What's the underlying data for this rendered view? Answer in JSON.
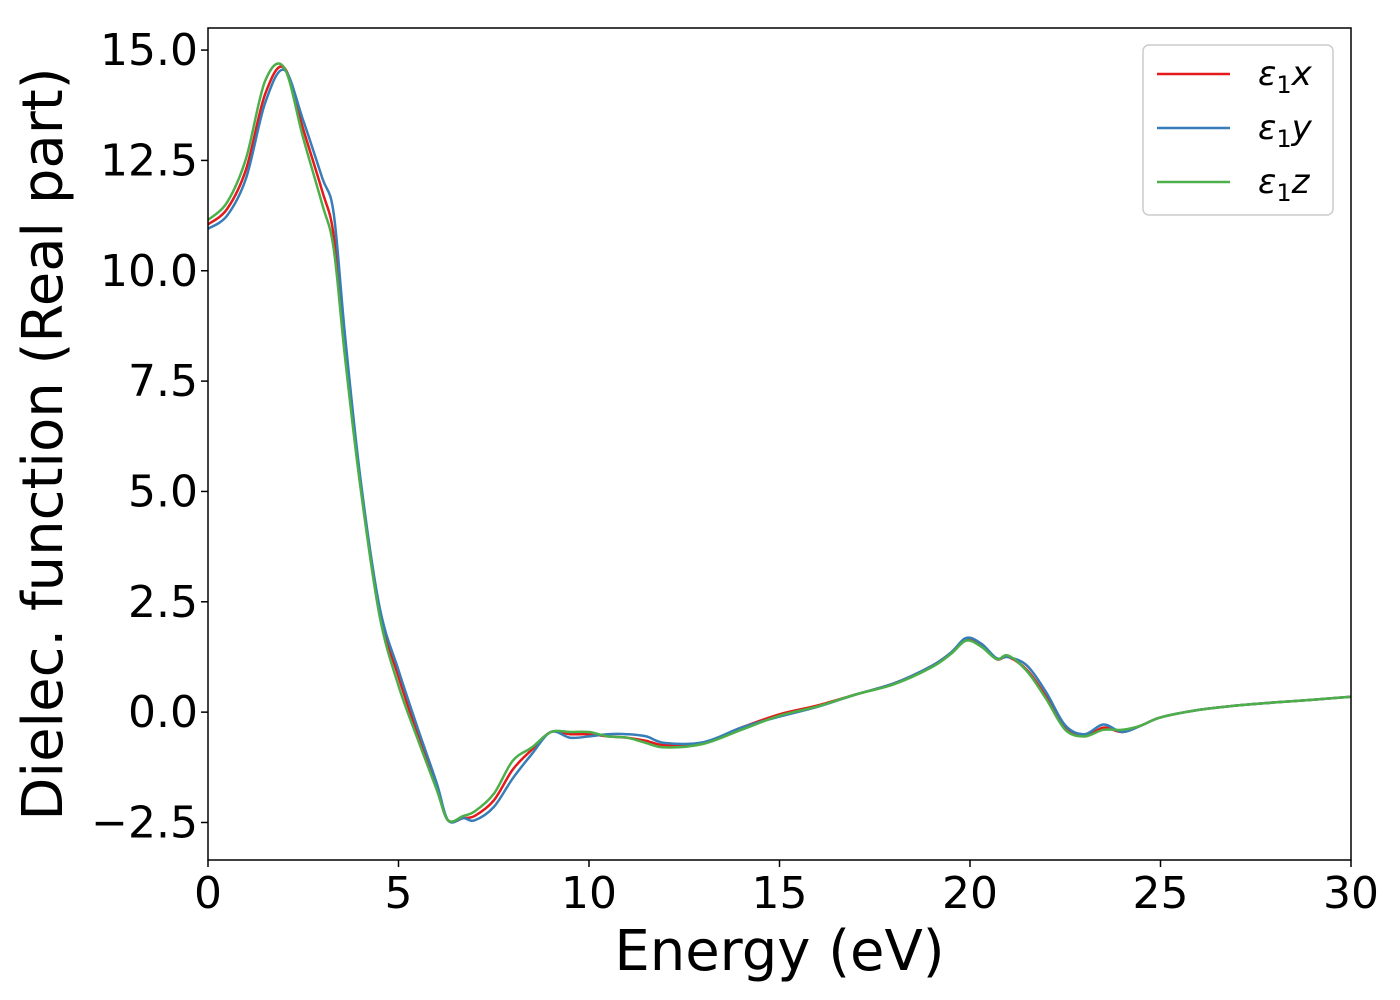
{
  "chart_data": {
    "type": "line",
    "title": "",
    "xlabel": "Energy (eV)",
    "ylabel": "Dielec. function (Real part)",
    "xlim": [
      0,
      30
    ],
    "ylim": [
      -3.35,
      15.5
    ],
    "xticks": [
      0,
      5,
      10,
      15,
      20,
      25,
      30
    ],
    "xtick_labels": [
      "0",
      "5",
      "10",
      "15",
      "20",
      "25",
      "30"
    ],
    "yticks": [
      -2.5,
      0.0,
      2.5,
      5.0,
      7.5,
      10.0,
      12.5,
      15.0
    ],
    "ytick_labels": [
      "−2.5",
      "0.0",
      "2.5",
      "5.0",
      "7.5",
      "10.0",
      "12.5",
      "15.0"
    ],
    "grid": false,
    "legend_position": "top-right",
    "series": [
      {
        "name": "ε₁x",
        "legend_main": "ε",
        "legend_sub": "1",
        "legend_var": "x",
        "color": "#e41a1c",
        "x": [
          0,
          0.5,
          1.0,
          1.5,
          2.0,
          2.5,
          3.0,
          3.3,
          3.6,
          4.0,
          4.5,
          5.0,
          5.5,
          6.0,
          6.3,
          6.7,
          7.0,
          7.5,
          8.0,
          8.5,
          9.0,
          9.5,
          10.0,
          10.5,
          11.0,
          11.5,
          12.0,
          13.0,
          14.0,
          15.0,
          16.0,
          17.0,
          18.0,
          19.0,
          19.5,
          19.9,
          20.3,
          20.7,
          21.0,
          21.5,
          22.0,
          22.5,
          23.0,
          23.5,
          24.0,
          24.5,
          25.0,
          26.0,
          27.0,
          28.0,
          29.0,
          30.0
        ],
        "y": [
          11.05,
          11.4,
          12.3,
          14.0,
          14.6,
          13.2,
          11.8,
          10.8,
          8.2,
          5.2,
          2.3,
          0.8,
          -0.5,
          -1.7,
          -2.45,
          -2.4,
          -2.35,
          -2.0,
          -1.3,
          -0.85,
          -0.45,
          -0.5,
          -0.5,
          -0.55,
          -0.58,
          -0.65,
          -0.75,
          -0.7,
          -0.35,
          -0.05,
          0.15,
          0.4,
          0.65,
          1.05,
          1.35,
          1.65,
          1.5,
          1.2,
          1.25,
          0.95,
          0.35,
          -0.35,
          -0.55,
          -0.35,
          -0.45,
          -0.3,
          -0.12,
          0.05,
          0.15,
          0.22,
          0.28,
          0.35
        ]
      },
      {
        "name": "ε₁y",
        "legend_main": "ε",
        "legend_sub": "1",
        "legend_var": "y",
        "color": "#377eb8",
        "x": [
          0,
          0.5,
          1.0,
          1.5,
          2.0,
          2.5,
          3.0,
          3.3,
          3.6,
          4.0,
          4.5,
          5.0,
          5.5,
          6.0,
          6.3,
          6.7,
          7.0,
          7.5,
          8.0,
          8.5,
          9.0,
          9.5,
          10.0,
          10.5,
          11.0,
          11.5,
          12.0,
          13.0,
          14.0,
          15.0,
          16.0,
          17.0,
          18.0,
          19.0,
          19.5,
          19.9,
          20.3,
          20.7,
          21.0,
          21.5,
          22.0,
          22.5,
          23.0,
          23.5,
          24.0,
          24.5,
          25.0,
          26.0,
          27.0,
          28.0,
          29.0,
          30.0
        ],
        "y": [
          10.95,
          11.25,
          12.1,
          13.8,
          14.55,
          13.4,
          12.1,
          11.3,
          8.5,
          5.3,
          2.4,
          0.95,
          -0.35,
          -1.6,
          -2.45,
          -2.4,
          -2.45,
          -2.15,
          -1.5,
          -0.95,
          -0.45,
          -0.58,
          -0.55,
          -0.5,
          -0.5,
          -0.55,
          -0.7,
          -0.68,
          -0.35,
          -0.1,
          0.12,
          0.4,
          0.65,
          1.05,
          1.35,
          1.68,
          1.55,
          1.22,
          1.25,
          1.05,
          0.45,
          -0.3,
          -0.5,
          -0.28,
          -0.45,
          -0.3,
          -0.12,
          0.05,
          0.15,
          0.22,
          0.28,
          0.35
        ]
      },
      {
        "name": "ε₁z",
        "legend_main": "ε",
        "legend_sub": "1",
        "legend_var": "z",
        "color": "#4daf4a",
        "x": [
          0,
          0.5,
          1.0,
          1.5,
          2.0,
          2.5,
          3.0,
          3.3,
          3.6,
          4.0,
          4.5,
          5.0,
          5.5,
          6.0,
          6.3,
          6.7,
          7.0,
          7.5,
          8.0,
          8.5,
          9.0,
          9.5,
          10.0,
          10.5,
          11.0,
          11.5,
          12.0,
          13.0,
          14.0,
          15.0,
          16.0,
          17.0,
          18.0,
          19.0,
          19.5,
          19.9,
          20.3,
          20.7,
          21.0,
          21.5,
          22.0,
          22.5,
          23.0,
          23.5,
          24.0,
          24.5,
          25.0,
          26.0,
          27.0,
          28.0,
          29.0,
          30.0
        ],
        "y": [
          11.15,
          11.55,
          12.55,
          14.3,
          14.6,
          13.0,
          11.5,
          10.5,
          8.0,
          5.1,
          2.2,
          0.6,
          -0.6,
          -1.75,
          -2.45,
          -2.35,
          -2.25,
          -1.85,
          -1.1,
          -0.8,
          -0.45,
          -0.45,
          -0.45,
          -0.55,
          -0.58,
          -0.7,
          -0.8,
          -0.72,
          -0.4,
          -0.08,
          0.13,
          0.4,
          0.63,
          1.02,
          1.32,
          1.62,
          1.48,
          1.2,
          1.28,
          0.92,
          0.3,
          -0.4,
          -0.55,
          -0.4,
          -0.4,
          -0.3,
          -0.12,
          0.05,
          0.15,
          0.22,
          0.28,
          0.35
        ]
      }
    ]
  }
}
